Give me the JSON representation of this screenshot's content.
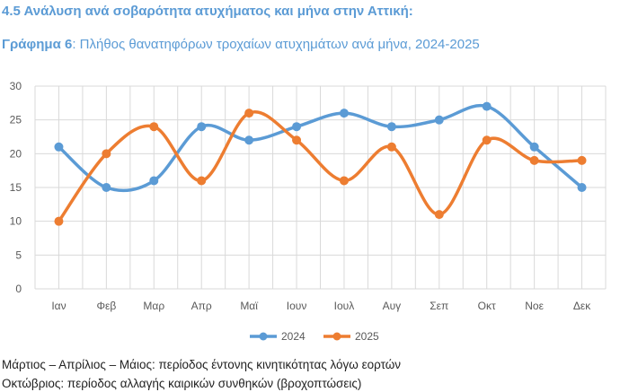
{
  "heading": "4.5 Ανάλυση ανά σοβαρότητα ατυχήματος και μήνα στην Αττική:",
  "subtitle_bold": "Γράφημα 6",
  "subtitle_rest": ": Πλήθος θανατηφόρων τροχαίων ατυχημάτων ανά μήνα, 2024-2025",
  "chart_data": {
    "type": "line",
    "title": "Πλήθος θανατηφόρων τροχαίων ατυχημάτων ανά μήνα, 2024-2025",
    "categories": [
      "Ιαν",
      "Φεβ",
      "Μαρ",
      "Απρ",
      "Μαϊ",
      "Ιουν",
      "Ιουλ",
      "Αυγ",
      "Σεπ",
      "Οκτ",
      "Νοε",
      "Δεκ"
    ],
    "series": [
      {
        "name": "2024",
        "color": "#5b9bd5",
        "values": [
          21,
          15,
          16,
          24,
          22,
          24,
          26,
          24,
          25,
          27,
          21,
          15
        ]
      },
      {
        "name": "2025",
        "color": "#ed7d31",
        "values": [
          10,
          20,
          24,
          16,
          26,
          22,
          16,
          21,
          11,
          22,
          19,
          19
        ]
      }
    ],
    "ylim": [
      0,
      30
    ],
    "yticks": [
      "0",
      "5",
      "10",
      "15",
      "20",
      "25",
      "30"
    ],
    "grid": true,
    "smooth": true,
    "legend": "bottom",
    "xlabel": "",
    "ylabel": ""
  },
  "notes": [
    "Μάρτιος – Απρίλιος – Μάιος: περίοδος έντονης κινητικότητας λόγω εορτών",
    "Οκτώβριος: περίοδος αλλαγής καιρικών συνθηκών (βροχοπτώσεις)"
  ]
}
